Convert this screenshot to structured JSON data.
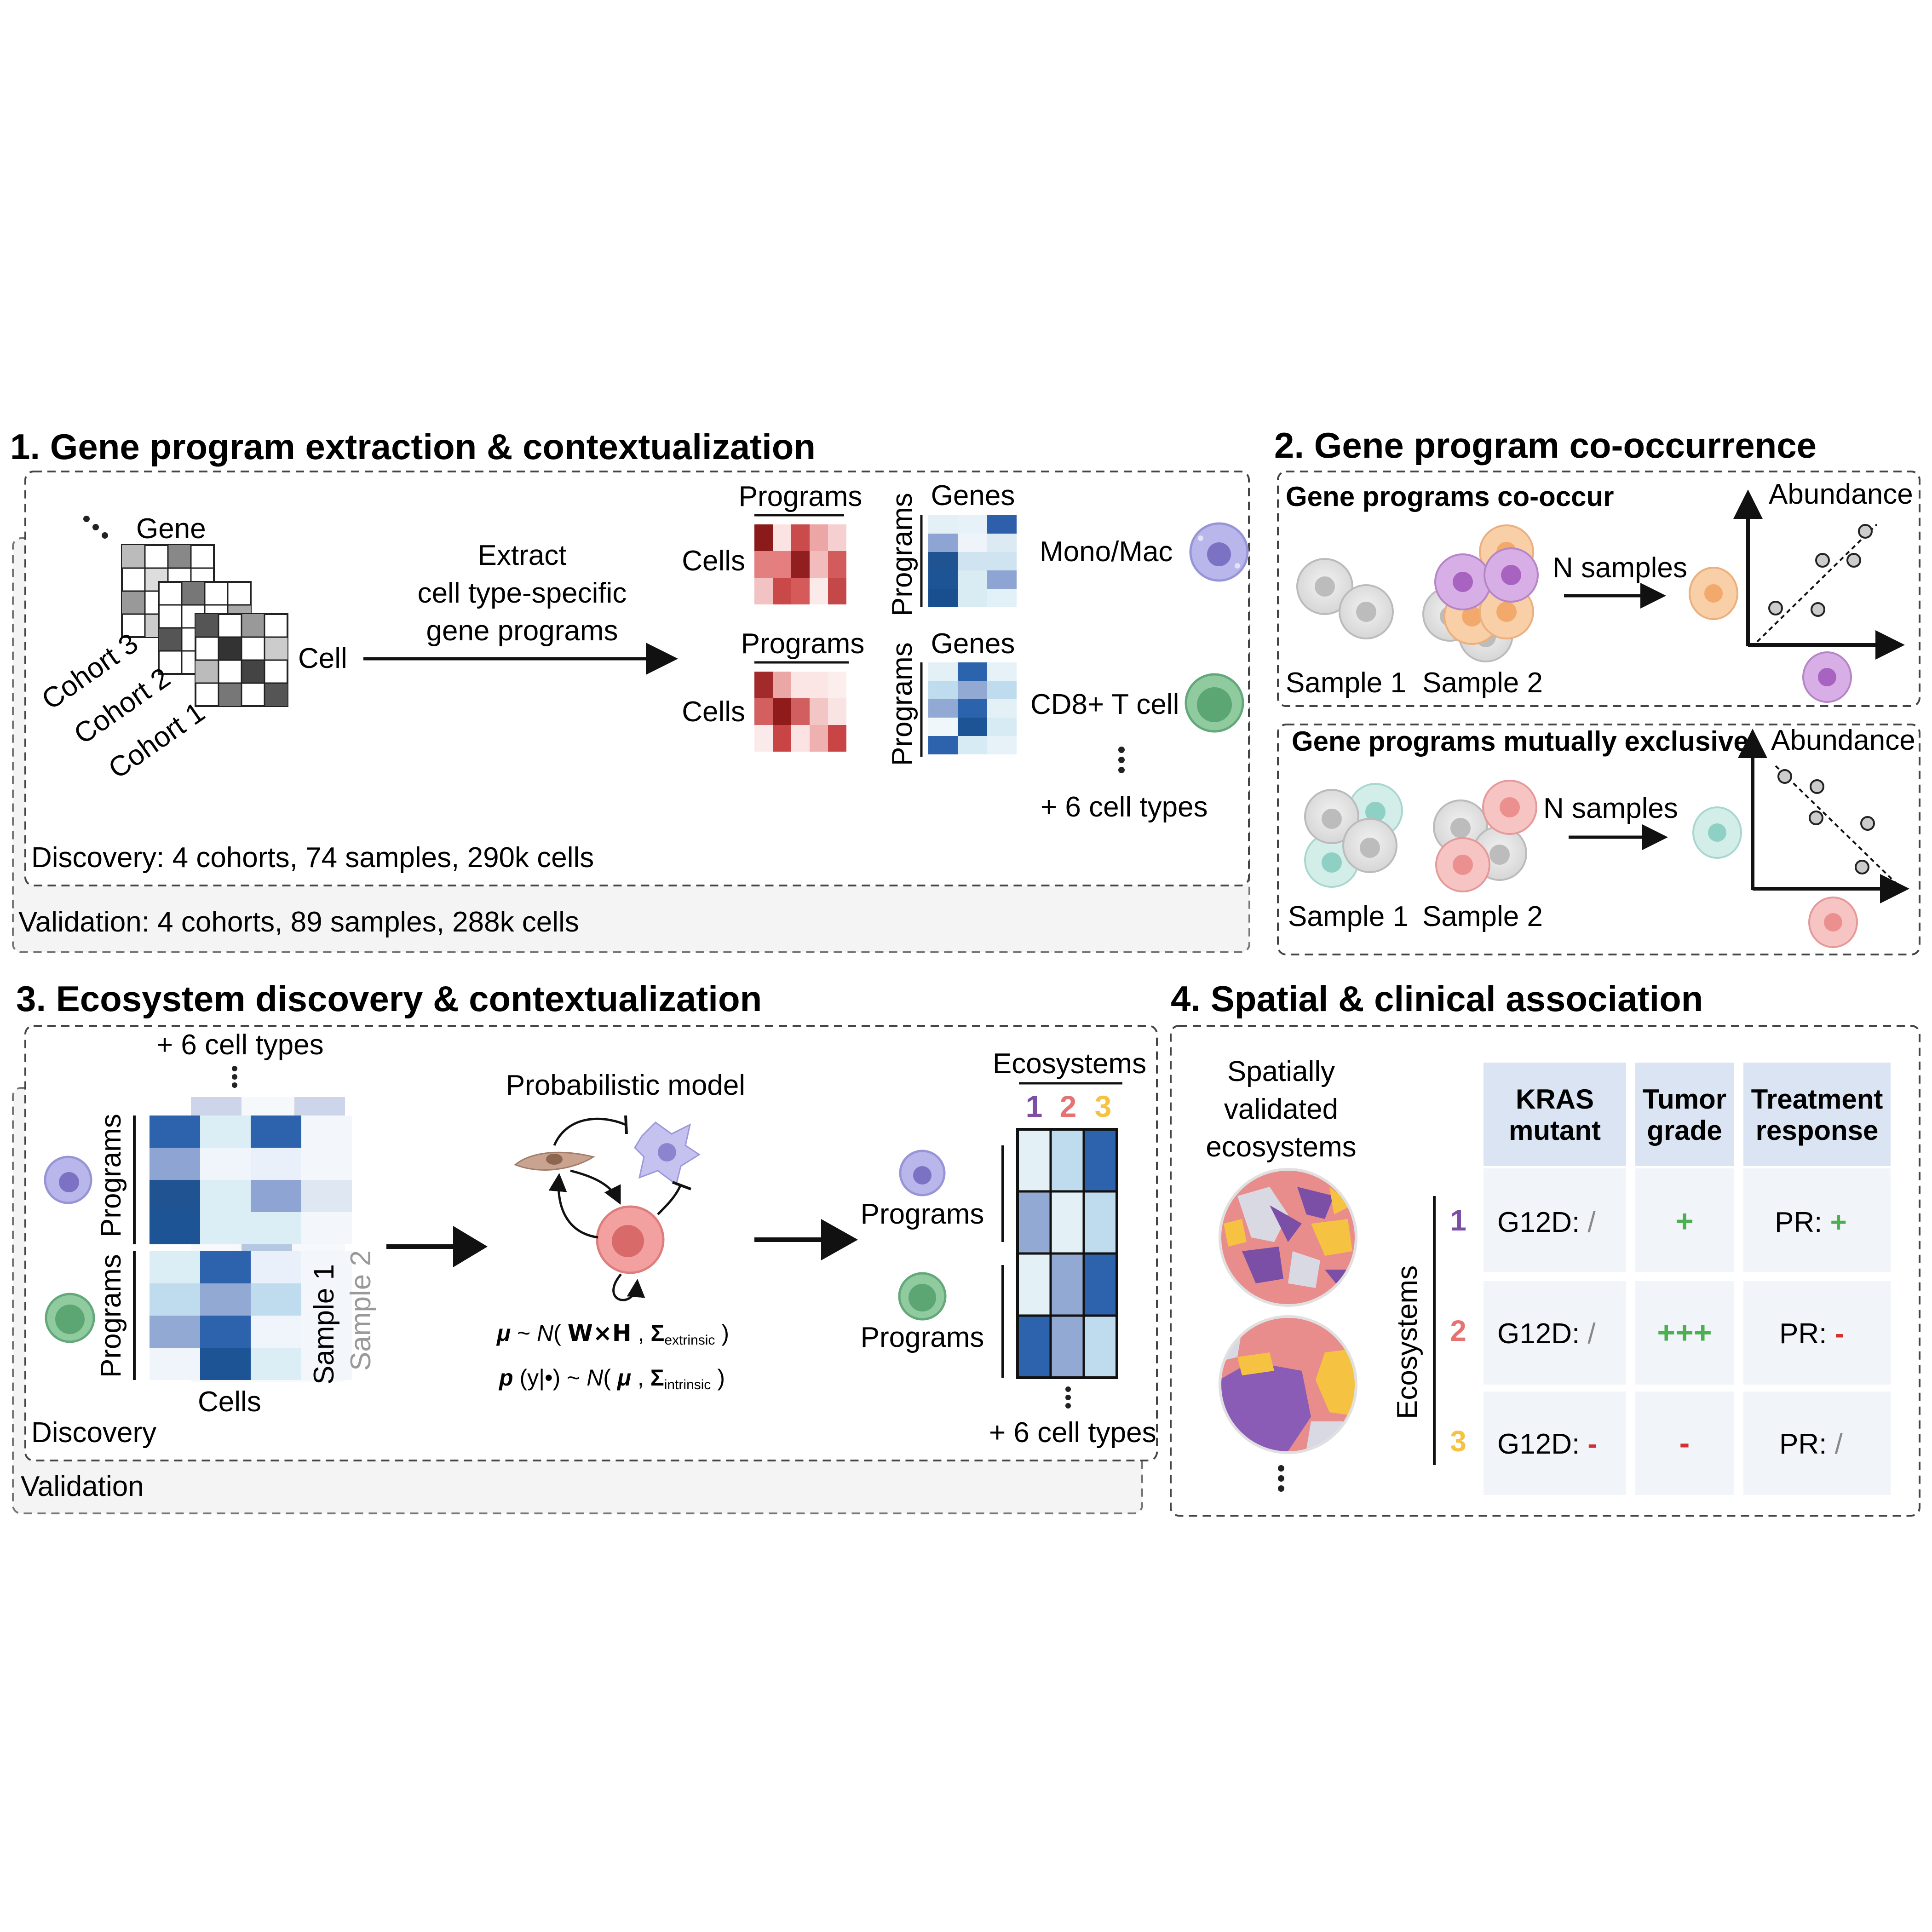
{
  "panel1": {
    "title": "1. Gene program extraction & contextualization",
    "gene_label": "Gene",
    "cell_label": "Cell",
    "cohorts": [
      "Cohort 3",
      "Cohort 2",
      "Cohort 1"
    ],
    "extract_text": [
      "Extract",
      "cell type-specific",
      "gene programs"
    ],
    "programs_label": "Programs",
    "cells_label": "Cells",
    "genes_label": "Genes",
    "cell_types": [
      "Mono/Mac",
      "CD8+ T cell"
    ],
    "more_cell_types": "+ 6 cell types",
    "discovery": "Discovery: 4 cohorts, 74 samples, 290k cells",
    "validation": "Validation: 4 cohorts, 89 samples, 288k cells"
  },
  "panel2": {
    "title": "2. Gene program co-occurrence",
    "co_occur_title": "Gene programs co-occur",
    "exclusive_title": "Gene programs mutually exclusive",
    "n_samples": "N samples",
    "abundance": "Abundance",
    "sample1": "Sample 1",
    "sample2": "Sample 2"
  },
  "panel3": {
    "title": "3. Ecosystem discovery & contextualization",
    "more_cell_types": "+ 6 cell types",
    "programs_label": "Programs",
    "cells_label": "Cells",
    "sample1": "Sample 1",
    "sample2": "Sample 2",
    "model_title": "Probabilistic model",
    "ecosystems_label": "Ecosystems",
    "eco_numbers": [
      "1",
      "2",
      "3"
    ],
    "discovery": "Discovery",
    "validation": "Validation"
  },
  "panel4": {
    "title": "4. Spatial & clinical association",
    "spatial_text": [
      "Spatially",
      "validated",
      "ecosystems"
    ],
    "col_headers": [
      [
        "KRAS",
        "mutant"
      ],
      [
        "Tumor",
        "grade"
      ],
      [
        "Treatment",
        "response"
      ]
    ],
    "row_label": "Ecosystems",
    "rows": [
      {
        "num": "1",
        "kras": "G12D: ",
        "kras_sym": "/",
        "grade": "+",
        "resp": "PR: ",
        "resp_sym": "+"
      },
      {
        "num": "2",
        "kras": "G12D: ",
        "kras_sym": "/",
        "grade": "+++",
        "resp": "PR: ",
        "resp_sym": "-"
      },
      {
        "num": "3",
        "kras": "G12D: ",
        "kras_sym": "-",
        "grade": "-",
        "resp": "PR: ",
        "resp_sym": "/"
      }
    ]
  },
  "colors": {
    "eco1": "#7b4fa6",
    "eco2": "#e57373",
    "eco3": "#f5c242",
    "plus": "#4caf50",
    "minus": "#d32f2f",
    "slash": "#888888",
    "table_header": "#dbe4f3",
    "table_cell": "#f1f4f9"
  }
}
